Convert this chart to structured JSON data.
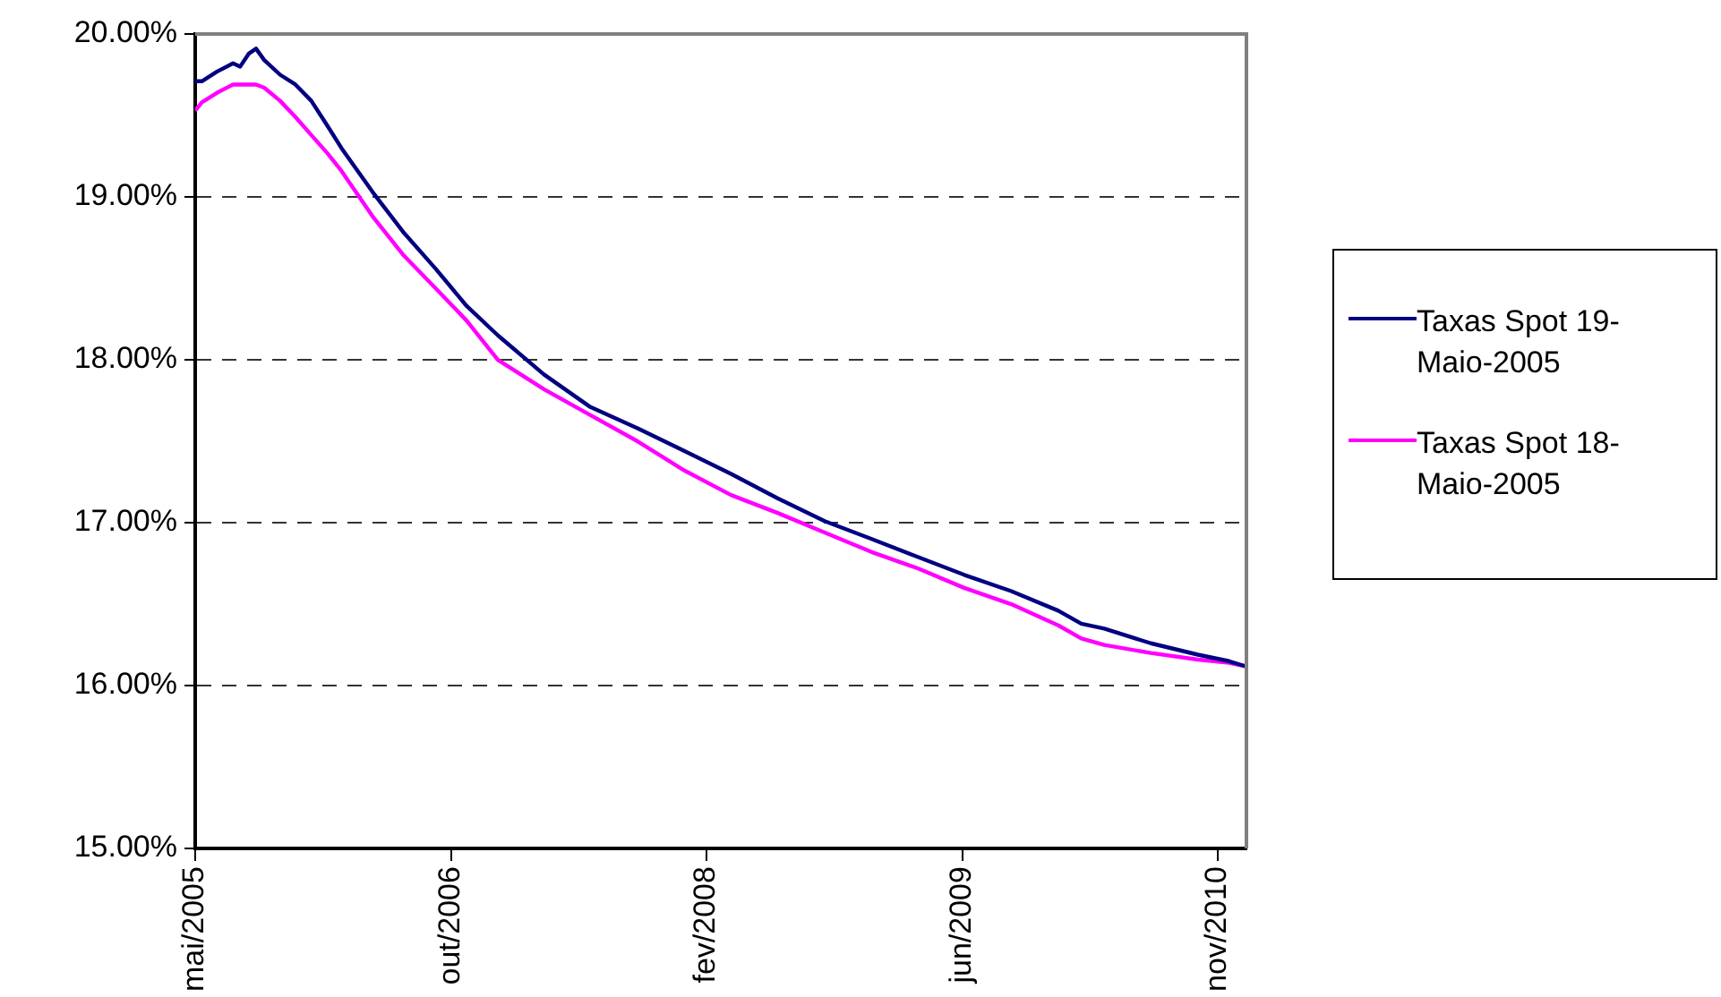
{
  "chart_data": {
    "type": "line",
    "x": [
      "2005-05-19",
      "2005-06-01",
      "2005-07-01",
      "2005-08-01",
      "2005-08-15",
      "2005-09-01",
      "2005-09-15",
      "2005-10-01",
      "2005-11-01",
      "2005-12-01",
      "2006-01-01",
      "2006-02-01",
      "2006-03-01",
      "2006-05-01",
      "2006-07-01",
      "2006-09-01",
      "2006-11-01",
      "2007-01-01",
      "2007-04-01",
      "2007-07-01",
      "2007-10-01",
      "2008-01-01",
      "2008-04-01",
      "2008-07-01",
      "2008-10-01",
      "2009-01-01",
      "2009-04-01",
      "2009-07-01",
      "2009-10-01",
      "2010-01-01",
      "2010-02-15",
      "2010-04-01",
      "2010-07-01",
      "2010-10-01",
      "2010-12-01",
      "2011-01-01"
    ],
    "series": [
      {
        "name": "Taxas Spot 19-Maio-2005",
        "color": "#000080",
        "values": [
          19.71,
          19.71,
          19.77,
          19.82,
          19.8,
          19.88,
          19.91,
          19.84,
          19.75,
          19.69,
          19.59,
          19.44,
          19.3,
          19.03,
          18.78,
          18.56,
          18.33,
          18.15,
          17.91,
          17.71,
          17.58,
          17.44,
          17.3,
          17.15,
          17.01,
          16.9,
          16.79,
          16.68,
          16.58,
          16.46,
          16.38,
          16.35,
          16.26,
          16.19,
          16.15,
          16.12
        ]
      },
      {
        "name": "Taxas Spot 18-Maio-2005",
        "color": "#ff00ff",
        "values": [
          19.53,
          19.58,
          19.64,
          19.69,
          19.69,
          19.69,
          19.69,
          19.67,
          19.59,
          19.49,
          19.38,
          19.27,
          19.16,
          18.88,
          18.64,
          18.44,
          18.24,
          18.0,
          17.82,
          17.66,
          17.5,
          17.32,
          17.17,
          17.06,
          16.94,
          16.82,
          16.72,
          16.6,
          16.5,
          16.37,
          16.29,
          16.25,
          16.2,
          16.16,
          16.14,
          16.12
        ]
      }
    ],
    "xlim": [
      "2005-05-19",
      "2011-01-04"
    ],
    "xticks": [
      {
        "value": "2005-05-19",
        "label": "mai/2005"
      },
      {
        "value": "2006-10-01",
        "label": "out/2006"
      },
      {
        "value": "2008-02-13",
        "label": "fev/2008"
      },
      {
        "value": "2009-06-27",
        "label": "jun/2009"
      },
      {
        "value": "2010-11-09",
        "label": "nov/2010"
      }
    ],
    "ylim": [
      15,
      20
    ],
    "yticks": [
      {
        "value": 15,
        "label": "15.00%"
      },
      {
        "value": 16,
        "label": "16.00%"
      },
      {
        "value": 17,
        "label": "17.00%"
      },
      {
        "value": 18,
        "label": "18.00%"
      },
      {
        "value": 19,
        "label": "19.00%"
      },
      {
        "value": 20,
        "label": "20.00%"
      }
    ],
    "grid": "y",
    "legend": "right",
    "marker": "none",
    "line_style": "solid"
  }
}
